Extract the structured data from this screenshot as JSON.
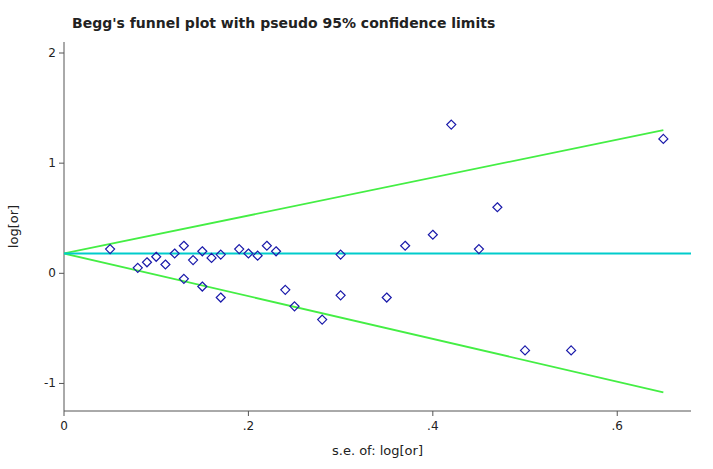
{
  "chart_data": {
    "type": "scatter",
    "title": "Begg's funnel plot with pseudo 95% confidence limits",
    "x_label": "s.e. of: log[or]",
    "y_label": "log[or]",
    "xlim": [
      0,
      0.68
    ],
    "ylim": [
      -1.25,
      2.1
    ],
    "xticks": [
      0,
      {
        "value": 0.2,
        "label": ".2"
      },
      {
        "value": 0.4,
        "label": ".4"
      },
      {
        "value": 0.6,
        "label": ".6"
      }
    ],
    "yticks": [
      -1,
      0,
      1,
      2
    ],
    "grid": false,
    "series": [
      {
        "type": "scatter",
        "marker": "diamond",
        "color": "#1a1aaa",
        "x": [
          0.05,
          0.08,
          0.09,
          0.1,
          0.11,
          0.12,
          0.13,
          0.13,
          0.14,
          0.15,
          0.15,
          0.16,
          0.17,
          0.17,
          0.19,
          0.2,
          0.21,
          0.22,
          0.23,
          0.24,
          0.25,
          0.28,
          0.3,
          0.3,
          0.35,
          0.37,
          0.4,
          0.42,
          0.45,
          0.47,
          0.5,
          0.55,
          0.65
        ],
        "values": [
          0.22,
          0.05,
          0.1,
          0.15,
          0.08,
          0.18,
          0.25,
          -0.05,
          0.12,
          0.2,
          -0.12,
          0.14,
          -0.22,
          0.17,
          0.22,
          0.18,
          0.16,
          0.25,
          0.2,
          -0.15,
          -0.3,
          -0.42,
          0.17,
          -0.2,
          -0.22,
          0.25,
          0.35,
          1.35,
          0.22,
          0.6,
          -0.7,
          -0.7,
          1.22
        ]
      },
      {
        "type": "line",
        "color": "#44ee44",
        "x": [
          0.0,
          0.65
        ],
        "values": [
          0.18,
          1.3
        ]
      },
      {
        "type": "line",
        "color": "#44ee44",
        "x": [
          0.0,
          0.65
        ],
        "values": [
          0.18,
          -1.08
        ]
      }
    ],
    "hlines": [
      {
        "value": 0.18,
        "color": "#00cccc"
      }
    ]
  }
}
